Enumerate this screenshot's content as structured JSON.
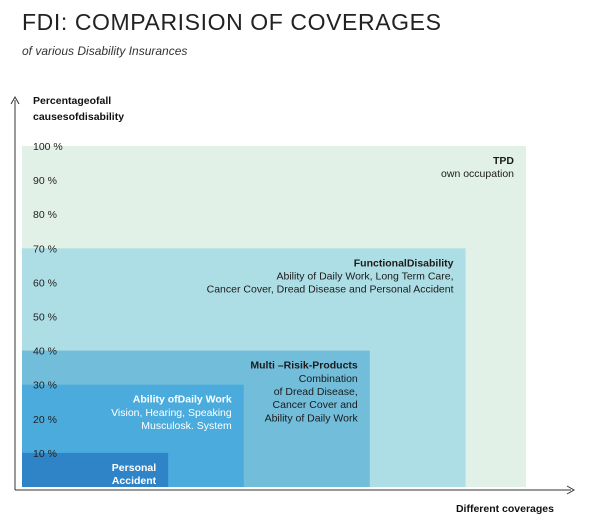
{
  "title": "FDI: COMPARISION OF COVERAGES",
  "subtitle": "of various Disability Insurances",
  "chart_data": {
    "type": "area",
    "ylabel": [
      "Percentageofall",
      "causesofdisability"
    ],
    "xlabel": "Different coverages",
    "ylim": [
      0,
      100
    ],
    "ticks": [
      "10 %",
      "20 %",
      "30 %",
      "40 %",
      "50 %",
      "60 %",
      "70 %",
      "80 %",
      "90 %",
      "100 %"
    ],
    "tick_values": [
      10,
      20,
      30,
      40,
      50,
      60,
      70,
      80,
      90,
      100
    ],
    "coverages": [
      {
        "id": "tpd",
        "name": "TPD",
        "desc": [
          "own occupation"
        ],
        "value": 100,
        "x_extent": 1.0,
        "color": "#e2f1e8",
        "label_align": "end"
      },
      {
        "id": "functional",
        "name": "FunctionalDisability",
        "desc": [
          "Ability of Daily Work, Long Term Care,",
          "Cancer Cover, Dread Disease and Personal Accident"
        ],
        "value": 70,
        "x_extent": 0.88,
        "color": "#a6dbe4",
        "label_align": "end"
      },
      {
        "id": "multi",
        "name": "Multi –Risik-Products",
        "desc": [
          "Combination",
          "of Dread Disease,",
          "Cancer Cover and",
          "Ability of Daily Work"
        ],
        "value": 40,
        "x_extent": 0.69,
        "color": "#6ab8d8",
        "label_align": "end"
      },
      {
        "id": "adw",
        "name": "Ability ofDaily Work",
        "desc": [
          "Vision, Hearing, Speaking",
          "Musculosk. System"
        ],
        "value": 30,
        "x_extent": 0.44,
        "color": "#44a8dc",
        "label_align": "end"
      },
      {
        "id": "pa",
        "name": "Personal Accident",
        "name_lines": [
          "Personal",
          "Accident"
        ],
        "desc": [],
        "value": 10,
        "x_extent": 0.29,
        "color": "#2b7ec4",
        "label_align": "end"
      }
    ]
  }
}
